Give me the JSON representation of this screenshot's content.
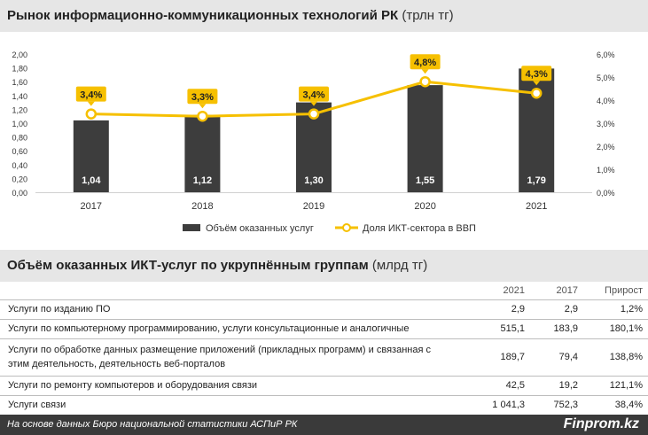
{
  "header1": {
    "title": "Рынок информационно-коммуникационных технологий РК",
    "unit": "(трлн тг)"
  },
  "chart_data": {
    "type": "bar",
    "categories": [
      "2017",
      "2018",
      "2019",
      "2020",
      "2021"
    ],
    "series": [
      {
        "name": "Объём оказанных услуг",
        "kind": "bar",
        "axis": "left",
        "values": [
          1.04,
          1.12,
          1.3,
          1.55,
          1.79
        ],
        "labels": [
          "1,04",
          "1,12",
          "1,30",
          "1,55",
          "1,79"
        ],
        "color": "#3d3d3d"
      },
      {
        "name": "Доля ИКТ-сектора в ВВП",
        "kind": "line",
        "axis": "right",
        "values": [
          3.4,
          3.3,
          3.4,
          4.8,
          4.3
        ],
        "labels": [
          "3,4%",
          "3,3%",
          "3,4%",
          "4,8%",
          "4,3%"
        ],
        "color": "#f6c000"
      }
    ],
    "y_left": {
      "min": 0,
      "max": 2.0,
      "ticks": [
        "0,00",
        "0,20",
        "0,40",
        "0,60",
        "0,80",
        "1,00",
        "1,20",
        "1,40",
        "1,60",
        "1,80",
        "2,00"
      ]
    },
    "y_right": {
      "min": 0,
      "max": 6.0,
      "ticks": [
        "0,0%",
        "1,0%",
        "2,0%",
        "3,0%",
        "4,0%",
        "5,0%",
        "6,0%"
      ]
    },
    "legend_position": "bottom",
    "grid": false
  },
  "header2": {
    "title": "Объём оказанных ИКТ-услуг по укрупнённым группам",
    "unit": "(млрд тг)"
  },
  "table": {
    "columns": [
      "2021",
      "2017",
      "Прирост"
    ],
    "rows": [
      {
        "name": "Услуги по изданию ПО",
        "v2021": "2,9",
        "v2017": "2,9",
        "growth": "1,2%"
      },
      {
        "name": "Услуги по компьютерному программированию, услуги консультационные и аналогичные",
        "v2021": "515,1",
        "v2017": "183,9",
        "growth": "180,1%"
      },
      {
        "name": "Услуги по обработке данных размещение приложений (прикладных программ) и связанная с этим деятельность, деятельность веб-порталов",
        "v2021": "189,7",
        "v2017": "79,4",
        "growth": "138,8%"
      },
      {
        "name": "Услуги по ремонту компьютеров и оборудования связи",
        "v2021": "42,5",
        "v2017": "19,2",
        "growth": "121,1%"
      },
      {
        "name": "Услуги связи",
        "v2021": "1 041,3",
        "v2017": "752,3",
        "growth": "38,4%"
      }
    ]
  },
  "footer": {
    "source": "На основе данных Бюро национальной статистики АСПиР РК",
    "brand": "Finprom.kz"
  }
}
